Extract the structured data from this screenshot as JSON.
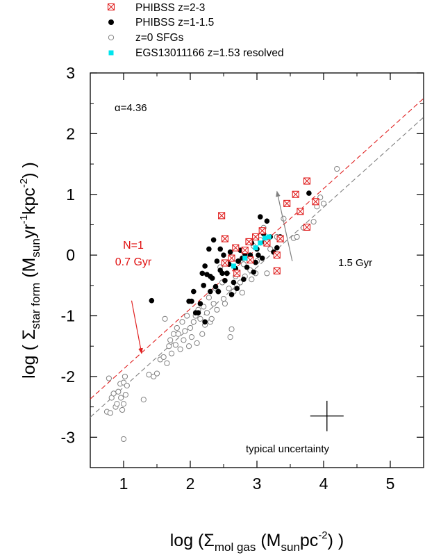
{
  "chart_data": {
    "type": "scatter",
    "xlabel": {
      "pre": "log (",
      "sym": "Σ",
      "sub": "mol gas",
      "mid1": " (M",
      "sub2": "sun",
      "mid2": "pc",
      "sup": "-2",
      "post": ") )"
    },
    "ylabel": {
      "pre": "log ( ",
      "sym": "Σ",
      "sub": "star form",
      "mid1": " (M",
      "sub2": "sun",
      "mid2": "yr",
      "sup1": "-1",
      "mid3": "kpc",
      "sup2": "-2",
      "post": ") )"
    },
    "xlim": [
      0.5,
      5.5
    ],
    "ylim": [
      -3.5,
      3.0
    ],
    "x_ticks": [
      1,
      2,
      3,
      4,
      5
    ],
    "x_tick_labels": [
      "1",
      "2",
      "3",
      "4",
      "5"
    ],
    "y_ticks": [
      3,
      2,
      1,
      0,
      -1,
      -2,
      -3
    ],
    "y_tick_labels": [
      "3",
      "2",
      "1",
      "0",
      "-1",
      "-2",
      "-3"
    ],
    "alpha_label": "α=4.36",
    "legend": [
      {
        "key": "phibss_z23",
        "label": "PHIBSS z=2-3"
      },
      {
        "key": "phibss_z115",
        "label": "PHIBSS z=1-1.5"
      },
      {
        "key": "sfg_z0",
        "label": "z=0 SFGs"
      },
      {
        "key": "egs",
        "label": "EGS13011166 z=1.53 resolved"
      }
    ],
    "lines": [
      {
        "name": "N=1 0.7 Gyr",
        "color": "#e02020",
        "x": [
          0.5,
          5.5
        ],
        "y": [
          -2.37,
          2.58
        ]
      },
      {
        "name": "1.5 Gyr",
        "color": "#808080",
        "x": [
          0.5,
          5.5
        ],
        "y": [
          -2.67,
          2.27
        ]
      }
    ],
    "annotations": {
      "red_line1": "N=1",
      "red_line2": "0.7 Gyr",
      "red_arrow_from": [
        1.12,
        -0.75
      ],
      "red_arrow_to": [
        1.27,
        -1.62
      ],
      "grey_label": "1.5 Gyr",
      "grey_arrow_from": [
        3.53,
        -0.1
      ],
      "grey_arrow_to": [
        3.3,
        1.05
      ],
      "uncertainty_label": "typical uncertainty",
      "error_bar": {
        "x": 4.05,
        "y": -2.65,
        "xerr": 0.25,
        "yerr": 0.25
      }
    },
    "series": [
      {
        "name": "PHIBSS z=2-3",
        "marker": "crossed-square",
        "color": "#e02020",
        "points": [
          [
            2.47,
            0.65
          ],
          [
            2.52,
            0.27
          ],
          [
            2.52,
            -0.13
          ],
          [
            2.62,
            -0.05
          ],
          [
            2.68,
            0.12
          ],
          [
            2.7,
            -0.3
          ],
          [
            2.82,
            0.08
          ],
          [
            2.88,
            0.22
          ],
          [
            2.9,
            -0.08
          ],
          [
            2.98,
            0.3
          ],
          [
            3.08,
            0.4
          ],
          [
            3.15,
            0.2
          ],
          [
            3.3,
            -0.26
          ],
          [
            3.3,
            0.0
          ],
          [
            3.35,
            0.27
          ],
          [
            3.45,
            0.85
          ],
          [
            3.58,
            1.0
          ],
          [
            3.65,
            0.72
          ],
          [
            3.75,
            1.22
          ],
          [
            3.75,
            0.46
          ],
          [
            3.88,
            0.88
          ]
        ]
      },
      {
        "name": "PHIBSS z=1-1.5",
        "marker": "filled-circle",
        "color": "#000000",
        "points": [
          [
            1.42,
            -0.75
          ],
          [
            1.98,
            -0.76
          ],
          [
            2.02,
            -0.76
          ],
          [
            2.08,
            -0.95
          ],
          [
            2.05,
            -0.6
          ],
          [
            2.12,
            -0.95
          ],
          [
            2.15,
            -0.8
          ],
          [
            2.18,
            -0.3
          ],
          [
            2.2,
            -0.5
          ],
          [
            2.22,
            -1.1
          ],
          [
            2.22,
            -0.18
          ],
          [
            2.25,
            -0.32
          ],
          [
            2.28,
            0.1
          ],
          [
            2.3,
            -0.6
          ],
          [
            2.3,
            -0.35
          ],
          [
            2.33,
            -0.38
          ],
          [
            2.35,
            0.25
          ],
          [
            2.38,
            -0.52
          ],
          [
            2.4,
            -0.1
          ],
          [
            2.42,
            -0.6
          ],
          [
            2.45,
            -0.25
          ],
          [
            2.45,
            0.1
          ],
          [
            2.48,
            -0.3
          ],
          [
            2.5,
            0.0
          ],
          [
            2.52,
            -0.42
          ],
          [
            2.55,
            -0.3
          ],
          [
            2.58,
            -0.15
          ],
          [
            2.6,
            0.05
          ],
          [
            2.62,
            -0.65
          ],
          [
            2.65,
            -0.45
          ],
          [
            2.68,
            -0.22
          ],
          [
            2.7,
            -0.55
          ],
          [
            2.72,
            -0.1
          ],
          [
            2.75,
            0.08
          ],
          [
            2.78,
            -0.05
          ],
          [
            2.8,
            -0.4
          ],
          [
            2.82,
            0.02
          ],
          [
            2.85,
            -0.2
          ],
          [
            2.88,
            -0.07
          ],
          [
            2.9,
            0.0
          ],
          [
            2.92,
            0.2
          ],
          [
            2.95,
            -0.28
          ],
          [
            2.98,
            -0.12
          ],
          [
            3.0,
            0.1
          ],
          [
            3.02,
            0.0
          ],
          [
            3.05,
            0.63
          ],
          [
            3.08,
            -0.05
          ],
          [
            3.1,
            0.35
          ],
          [
            3.12,
            0.22
          ],
          [
            3.15,
            0.56
          ],
          [
            3.2,
            0.3
          ],
          [
            3.25,
            0.05
          ],
          [
            3.3,
            0.12
          ],
          [
            3.35,
            0.3
          ],
          [
            3.78,
            1.02
          ]
        ]
      },
      {
        "name": "z=0 SFGs",
        "marker": "open-circle",
        "color": "#808080",
        "points": [
          [
            0.75,
            -2.58
          ],
          [
            0.78,
            -2.03
          ],
          [
            0.8,
            -2.6
          ],
          [
            0.82,
            -2.35
          ],
          [
            0.85,
            -2.28
          ],
          [
            0.88,
            -2.5
          ],
          [
            0.9,
            -2.45
          ],
          [
            0.92,
            -2.25
          ],
          [
            0.95,
            -2.12
          ],
          [
            0.96,
            -2.35
          ],
          [
            0.98,
            -2.55
          ],
          [
            1.0,
            -2.1
          ],
          [
            1.0,
            -2.45
          ],
          [
            1.0,
            -3.03
          ],
          [
            1.02,
            -2.0
          ],
          [
            1.03,
            -2.3
          ],
          [
            1.05,
            -2.15
          ],
          [
            1.3,
            -2.38
          ],
          [
            1.38,
            -1.97
          ],
          [
            1.45,
            -2.0
          ],
          [
            1.5,
            -1.95
          ],
          [
            1.55,
            -1.72
          ],
          [
            1.6,
            -1.68
          ],
          [
            1.62,
            -1.05
          ],
          [
            1.65,
            -1.78
          ],
          [
            1.68,
            -1.5
          ],
          [
            1.7,
            -1.4
          ],
          [
            1.72,
            -1.62
          ],
          [
            1.75,
            -1.3
          ],
          [
            1.78,
            -1.48
          ],
          [
            1.8,
            -1.2
          ],
          [
            1.82,
            -1.3
          ],
          [
            1.85,
            -1.55
          ],
          [
            1.88,
            -1.1
          ],
          [
            1.9,
            -1.4
          ],
          [
            1.92,
            -1.25
          ],
          [
            1.95,
            -1.0
          ],
          [
            1.98,
            -1.5
          ],
          [
            2.0,
            -1.2
          ],
          [
            2.02,
            -1.35
          ],
          [
            2.05,
            -1.1
          ],
          [
            2.08,
            -1.0
          ],
          [
            2.1,
            -1.45
          ],
          [
            2.12,
            -0.9
          ],
          [
            2.15,
            -1.05
          ],
          [
            2.18,
            -1.3
          ],
          [
            2.2,
            -0.85
          ],
          [
            2.22,
            -1.15
          ],
          [
            2.25,
            -0.95
          ],
          [
            2.28,
            -0.7
          ],
          [
            2.3,
            -1.1
          ],
          [
            2.32,
            -1.05
          ],
          [
            2.35,
            -0.8
          ],
          [
            2.38,
            -0.55
          ],
          [
            2.4,
            -0.9
          ],
          [
            2.42,
            -0.6
          ],
          [
            2.45,
            -0.2
          ],
          [
            2.48,
            -0.45
          ],
          [
            2.5,
            -0.72
          ],
          [
            2.52,
            -0.8
          ],
          [
            2.55,
            -0.3
          ],
          [
            2.58,
            -0.55
          ],
          [
            2.6,
            -1.35
          ],
          [
            2.62,
            -1.22
          ],
          [
            2.65,
            -0.6
          ],
          [
            2.68,
            -0.35
          ],
          [
            2.7,
            -0.5
          ],
          [
            2.72,
            -0.1
          ],
          [
            2.75,
            -0.45
          ],
          [
            2.78,
            -0.62
          ],
          [
            2.8,
            -0.15
          ],
          [
            2.82,
            -0.35
          ],
          [
            2.85,
            -0.05
          ],
          [
            2.9,
            -0.25
          ],
          [
            2.92,
            -0.4
          ],
          [
            2.95,
            0.15
          ],
          [
            2.98,
            -0.3
          ],
          [
            3.0,
            -0.1
          ],
          [
            3.05,
            0.25
          ],
          [
            3.1,
            0.45
          ],
          [
            3.15,
            -0.3
          ],
          [
            3.2,
            0.1
          ],
          [
            3.3,
            0.3
          ],
          [
            3.4,
            0.6
          ],
          [
            3.55,
            0.28
          ],
          [
            3.6,
            0.3
          ],
          [
            3.7,
            0.45
          ],
          [
            3.85,
            0.55
          ],
          [
            3.9,
            0.8
          ],
          [
            3.95,
            0.95
          ],
          [
            4.0,
            0.85
          ],
          [
            4.2,
            1.42
          ]
        ]
      },
      {
        "name": "EGS13011166 z=1.53 resolved",
        "marker": "filled-square",
        "color": "#00e5ee",
        "points": [
          [
            2.65,
            -0.18
          ],
          [
            2.82,
            -0.05
          ],
          [
            2.98,
            0.12
          ],
          [
            3.05,
            0.2
          ],
          [
            3.12,
            0.28
          ],
          [
            3.18,
            0.3
          ]
        ]
      }
    ]
  }
}
